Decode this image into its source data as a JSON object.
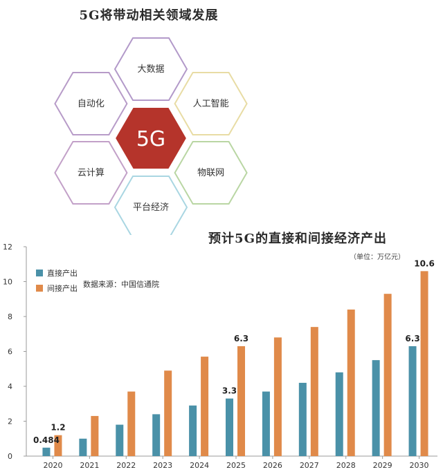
{
  "hex_diagram": {
    "title": "5G将带动相关领域发展",
    "center": {
      "label": "5G",
      "color": "#b5342b"
    },
    "items": [
      {
        "label": "大数据",
        "color": "#b299c9"
      },
      {
        "label": "人工智能",
        "color": "#e8dca4"
      },
      {
        "label": "物联网",
        "color": "#b9d6a3"
      },
      {
        "label": "平台经济",
        "color": "#a9d6e2"
      },
      {
        "label": "云计算",
        "color": "#c2a0c8"
      },
      {
        "label": "自动化",
        "color": "#b79bc8"
      }
    ]
  },
  "chart_data": {
    "type": "bar",
    "title": "预计5G的直接和间接经济产出",
    "unit": "（单位：万亿元）",
    "source": "数据来源：中国信通院",
    "categories": [
      "2020",
      "2021",
      "2022",
      "2023",
      "2024",
      "2025",
      "2026",
      "2027",
      "2028",
      "2029",
      "2030"
    ],
    "series": [
      {
        "name": "直接产出",
        "color": "#4a91a8",
        "values": [
          0.484,
          1.0,
          1.8,
          2.4,
          2.9,
          3.3,
          3.7,
          4.2,
          4.8,
          5.5,
          6.3
        ]
      },
      {
        "name": "间接产出",
        "color": "#e08a4a",
        "values": [
          1.2,
          2.3,
          3.7,
          4.9,
          5.7,
          6.3,
          6.8,
          7.4,
          8.4,
          9.3,
          10.6
        ]
      }
    ],
    "data_labels": [
      {
        "series": 0,
        "index": 0,
        "text": "0.484"
      },
      {
        "series": 1,
        "index": 0,
        "text": "1.2"
      },
      {
        "series": 0,
        "index": 5,
        "text": "3.3"
      },
      {
        "series": 1,
        "index": 5,
        "text": "6.3"
      },
      {
        "series": 0,
        "index": 10,
        "text": "6.3"
      },
      {
        "series": 1,
        "index": 10,
        "text": "10.6"
      }
    ],
    "yticks": [
      "0",
      "2",
      "4",
      "6",
      "8",
      "10",
      "12"
    ],
    "ylim": [
      0,
      12
    ],
    "grid": false,
    "legend": "top-left"
  }
}
